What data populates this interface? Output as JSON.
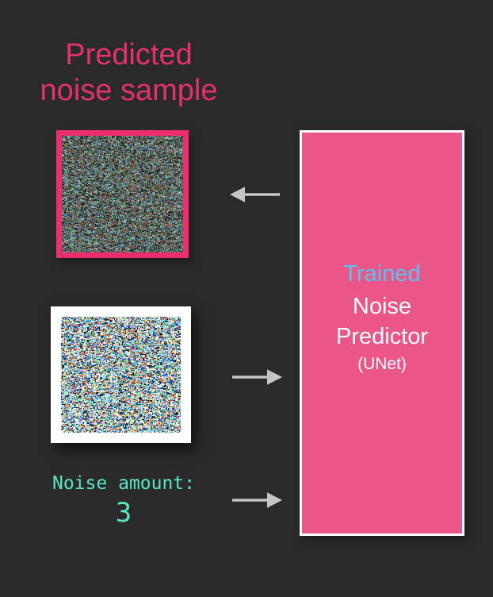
{
  "background_color": "#2b2a2a",
  "title": {
    "line1": "Predicted",
    "line2": "noise sample",
    "color": "#e23368"
  },
  "predicted_noise_image": {
    "description": "dark multicolor noise sample",
    "border_color": "#ee2d6e",
    "palette": [
      "#2f3431",
      "#4c5a58",
      "#5d6d75",
      "#74868e",
      "#2a2f2c",
      "#8a9aa2",
      "#3f5348",
      "#6e4a3e",
      "#3f617a",
      "#9fb0b6",
      "#23352c",
      "#6a5a32",
      "#4f7a6a",
      "#a85848",
      "#4f8ab0",
      "#62b08a",
      "#1e2420",
      "#7a8a52"
    ]
  },
  "noisy_input_image": {
    "description": "bright multicolor noise image in white frame",
    "frame_color": "#ffffff",
    "palette": [
      "#dfe8ea",
      "#ffffff",
      "#5aaae8",
      "#8ed0f2",
      "#3072c8",
      "#e85444",
      "#46b066",
      "#9aeccd",
      "#202020",
      "#f2ea9a",
      "#e0a8cc",
      "#2a3a80",
      "#8a6040",
      "#66d0e8",
      "#f4f8fa",
      "#184898",
      "#c8e8b0",
      "#f0b050"
    ]
  },
  "noise_amount": {
    "label": "Noise amount:",
    "value": "3",
    "color": "#59e6c4"
  },
  "arrows": {
    "color": "#c5c5c5",
    "items": [
      {
        "direction": "left",
        "meaning": "output from predictor to predicted noise sample"
      },
      {
        "direction": "right",
        "meaning": "noisy image input to predictor"
      },
      {
        "direction": "right",
        "meaning": "noise amount input to predictor"
      }
    ]
  },
  "predictor_box": {
    "fill_color": "#ea5688",
    "border_color": "#ffffff",
    "line1": "Trained",
    "line1_color": "#55c6f2",
    "line2": "Noise",
    "line3": "Predictor",
    "line4": "(UNet)",
    "text_color": "#ffffff"
  }
}
